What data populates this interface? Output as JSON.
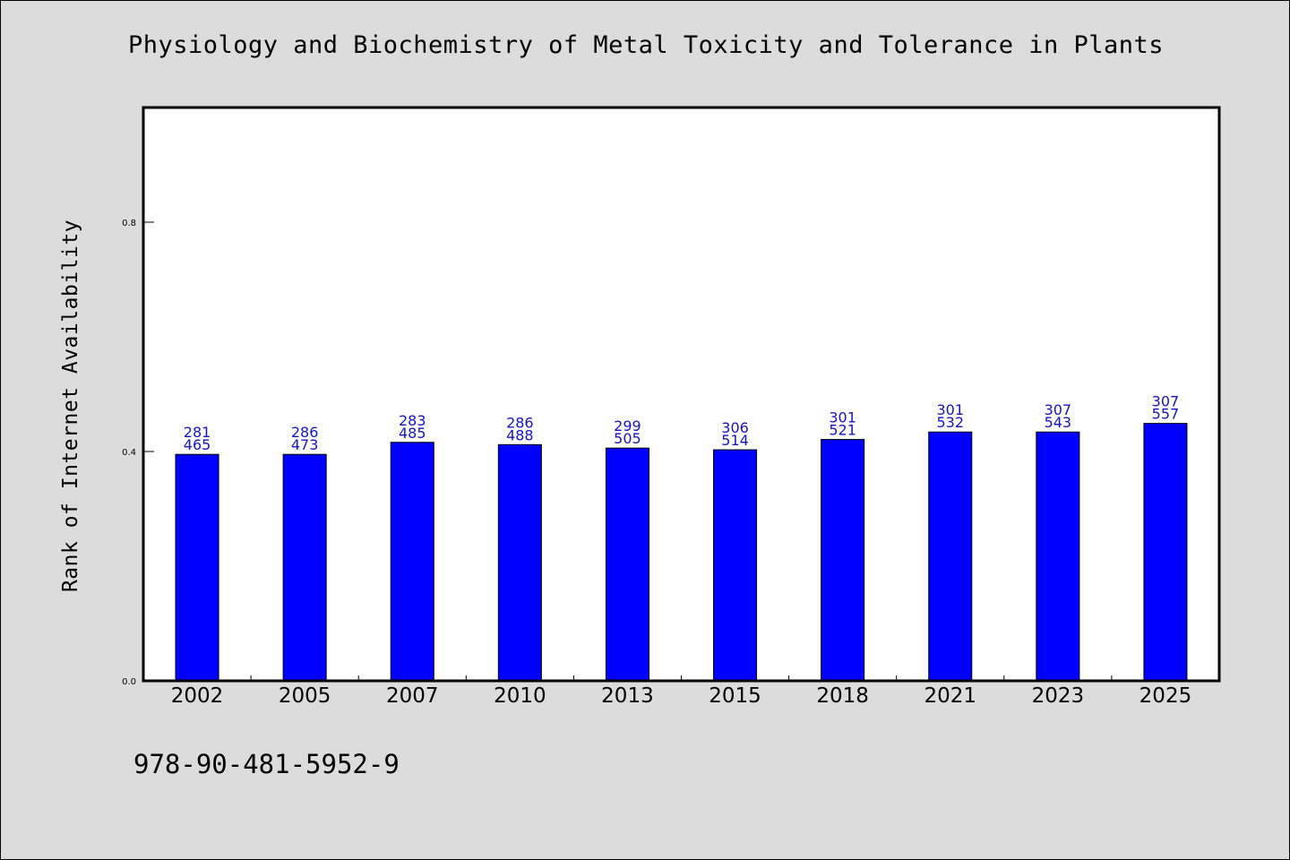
{
  "chart_data": {
    "type": "bar",
    "title": "Physiology and Biochemistry of Metal Toxicity and Tolerance in Plants",
    "ylabel": "Rank of Internet Availability",
    "xlabel": "",
    "ylim": [
      0,
      1.0
    ],
    "yticks": [
      0.0,
      0.4,
      0.8
    ],
    "ytick_labels": [
      "0.0",
      "0.4",
      "0.8"
    ],
    "categories": [
      "2002",
      "2005",
      "2007",
      "2010",
      "2013",
      "2015",
      "2018",
      "2021",
      "2023",
      "2025"
    ],
    "values": [
      0.395,
      0.395,
      0.416,
      0.412,
      0.406,
      0.403,
      0.421,
      0.434,
      0.434,
      0.449
    ],
    "labels_upper": [
      "281",
      "286",
      "283",
      "286",
      "299",
      "306",
      "301",
      "301",
      "307",
      "307"
    ],
    "labels_lower": [
      "465",
      "473",
      "485",
      "488",
      "505",
      "514",
      "521",
      "532",
      "543",
      "557"
    ],
    "grid": false,
    "legend": "none",
    "bar_color": "#0000ff",
    "label_color": "#1414c8",
    "background_color": "#dcdcdc",
    "plot_background": "#ffffff"
  },
  "footer": {
    "isbn": "978-90-481-5952-9"
  }
}
